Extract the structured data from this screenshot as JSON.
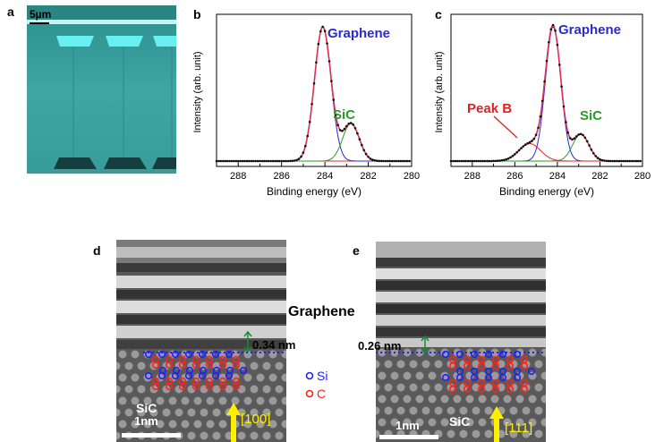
{
  "figure": {
    "panels": {
      "a": {
        "letter": "a",
        "scale_bar": "5µm"
      },
      "b": {
        "letter": "b",
        "ylabel": "Intensity (arb. unit)",
        "xlabel": "Binding energy (eV)",
        "labels": {
          "graphene": "Graphene",
          "sic": "SiC"
        },
        "xticks": [
          "288",
          "286",
          "284",
          "282",
          "280"
        ]
      },
      "c": {
        "letter": "c",
        "ylabel": "Intensity (arb. unit)",
        "xlabel": "Binding energy (eV)",
        "labels": {
          "graphene": "Graphene",
          "sic": "SiC",
          "peakb": "Peak B"
        },
        "xticks": [
          "288",
          "286",
          "284",
          "282",
          "280"
        ]
      },
      "d": {
        "letter": "d",
        "graphene_label": "Graphene",
        "spacing": "0.34 nm",
        "sic_label": "SiC",
        "scale_bar": "1nm",
        "direction": "[100]"
      },
      "e": {
        "letter": "e",
        "spacing": "0.26 nm",
        "sic_label": "SiC",
        "scale_bar": "1nm",
        "direction": "[111]"
      }
    },
    "legend": {
      "si": "Si",
      "c": "C"
    },
    "colors": {
      "graphene_label": "#2a2ad0",
      "sic_label": "#2a9a2a",
      "peakb_label": "#e02020",
      "arrow": "#ffee00",
      "atom_si": "#2020ff",
      "atom_c": "#ff2020",
      "spacing_arrow": "#1a8a3a"
    }
  },
  "chart_data": [
    {
      "type": "line",
      "panel": "b",
      "xlabel": "Binding energy (eV)",
      "ylabel": "Intensity (arb. unit)",
      "xlim": [
        289,
        280
      ],
      "series": [
        {
          "name": "Graphene",
          "peak": 284.1,
          "fwhm": 0.9,
          "height": 1.0
        },
        {
          "name": "SiC",
          "peak": 282.8,
          "fwhm": 0.9,
          "height": 0.28
        }
      ]
    },
    {
      "type": "line",
      "panel": "c",
      "xlabel": "Binding energy (eV)",
      "ylabel": "Intensity (arb. unit)",
      "xlim": [
        289,
        280
      ],
      "series": [
        {
          "name": "Graphene",
          "peak": 284.2,
          "fwhm": 0.85,
          "height": 1.0
        },
        {
          "name": "SiC",
          "peak": 282.9,
          "fwhm": 0.9,
          "height": 0.2
        },
        {
          "name": "Peak B",
          "peak": 285.3,
          "fwhm": 1.2,
          "height": 0.13
        }
      ]
    }
  ]
}
